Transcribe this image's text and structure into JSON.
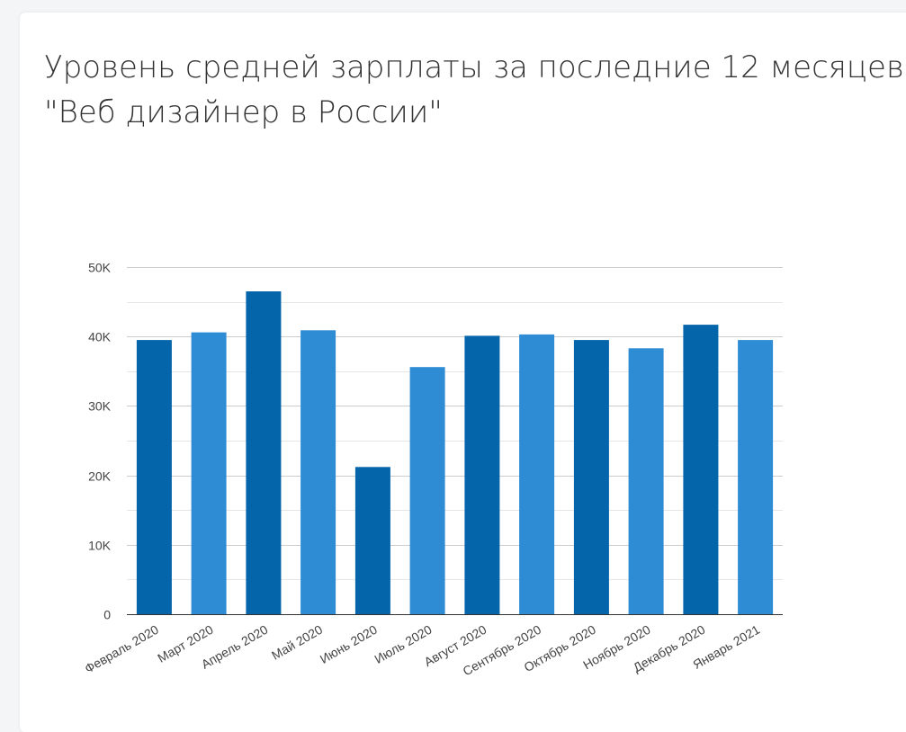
{
  "title": {
    "line1": "Уровень средней зарплаты за последние 12 месяцев:",
    "line2": "\"Веб дизайнер в России\""
  },
  "colors": {
    "dark": "#0565aa",
    "light": "#2e8cd5",
    "grid": "#cccccc",
    "minor_grid": "#e6e6e6",
    "axis": "#333333",
    "text": "#444444"
  },
  "chart_data": {
    "type": "bar",
    "title": "Уровень средней зарплаты за последние 12 месяцев: \"Веб дизайнер в России\"",
    "xlabel": "",
    "ylabel": "",
    "ylim": [
      0,
      50000
    ],
    "grid": true,
    "yticks": [
      0,
      10000,
      20000,
      30000,
      40000,
      50000
    ],
    "ytick_labels": [
      "0",
      "10K",
      "20K",
      "30K",
      "40K",
      "50K"
    ],
    "categories": [
      "Февраль 2020",
      "Март 2020",
      "Апрель 2020",
      "Май 2020",
      "Июнь 2020",
      "Июль 2020",
      "Август 2020",
      "Сентябрь 2020",
      "Октябрь 2020",
      "Ноябрь 2020",
      "Декабрь 2020",
      "Январь 2021"
    ],
    "values": [
      39500,
      40600,
      46500,
      40900,
      21200,
      35600,
      40100,
      40300,
      39500,
      38300,
      41700,
      39500
    ],
    "bar_colors": [
      "dark",
      "light",
      "dark",
      "light",
      "dark",
      "light",
      "dark",
      "light",
      "dark",
      "light",
      "dark",
      "light"
    ]
  }
}
